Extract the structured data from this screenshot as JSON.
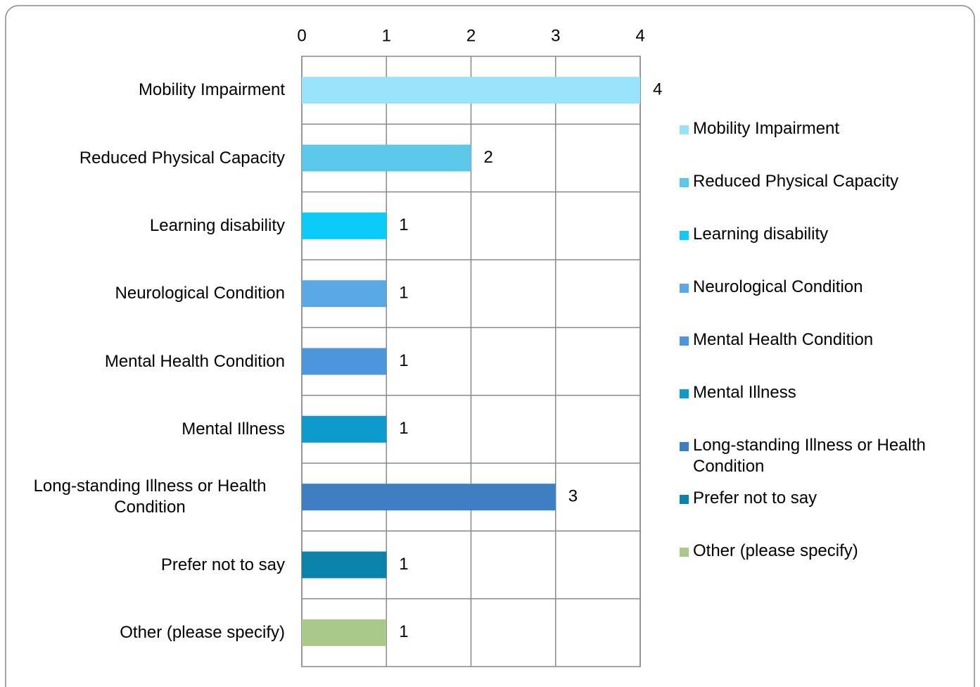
{
  "chart_data": {
    "type": "bar",
    "orientation": "horizontal",
    "categories": [
      "Mobility Impairment",
      "Reduced Physical Capacity",
      "Learning disability",
      "Neurological Condition",
      "Mental Health Condition",
      "Mental Illness",
      "Long-standing Illness or Health Condition",
      "Prefer not to say",
      "Other (please specify)"
    ],
    "values": [
      4,
      2,
      1,
      1,
      1,
      1,
      3,
      1,
      1
    ],
    "colors": [
      "#99e3fa",
      "#5bc8ea",
      "#0ccbf9",
      "#5aa9e6",
      "#4d96de",
      "#0f9ace",
      "#3e7ec2",
      "#0b82a9",
      "#a9c98a"
    ],
    "xlim": [
      0,
      4
    ],
    "xticks": [
      0,
      1,
      2,
      3,
      4
    ],
    "grid": true,
    "legend": "right"
  }
}
